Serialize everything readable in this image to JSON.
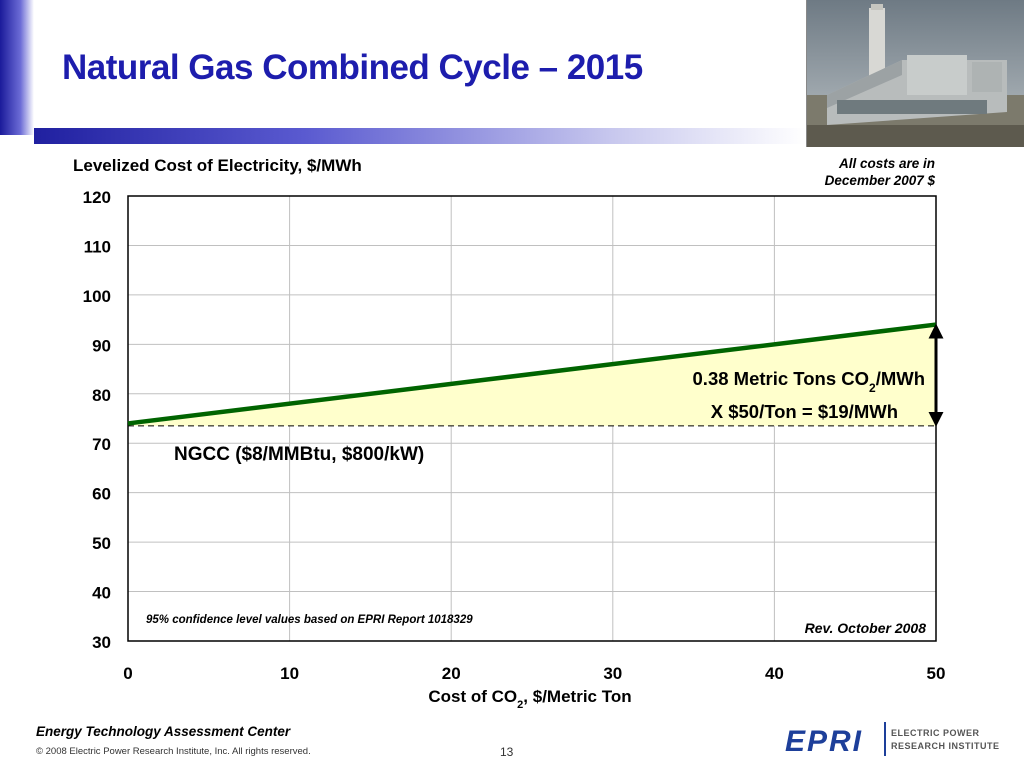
{
  "slide": {
    "title": "Natural Gas Combined Cycle – 2015",
    "cost_note_line1": "All costs are in",
    "cost_note_line2": "December 2007 $",
    "footer_center": "Energy Technology Assessment Center",
    "copyright": "© 2008 Electric Power Research Institute, Inc. All rights reserved.",
    "page_number": "13",
    "logo_text": "EPRI",
    "logo_line1": "ELECTRIC POWER",
    "logo_line2": "RESEARCH INSTITUTE",
    "photo_subject": "power-plant-photo"
  },
  "colors": {
    "title": "#1d1dad",
    "series_line": "#006400",
    "fill": "#ffffcc",
    "grid": "#c0c0c0",
    "logo": "#1d3f9a"
  },
  "chart_data": {
    "type": "line",
    "ylabel": "Levelized Cost of Electricity, $/MWh",
    "xlabel": "Cost of CO",
    "xlabel_sub": "2",
    "xlabel_suffix": ", $/Metric Ton",
    "xlim": [
      0,
      50
    ],
    "ylim": [
      30,
      120
    ],
    "x_ticks": [
      0,
      10,
      20,
      30,
      40,
      50
    ],
    "y_ticks": [
      30,
      40,
      50,
      60,
      70,
      80,
      90,
      100,
      110,
      120
    ],
    "grid": true,
    "series": [
      {
        "name": "NGCC ($8/MMBtu, $800/kW)",
        "x": [
          0,
          50
        ],
        "y": [
          74,
          94
        ]
      }
    ],
    "baseline": 73.5,
    "annotations": {
      "series_label": "NGCC ($8/MMBtu, $800/kW)",
      "line1_prefix": "0.38 Metric Tons CO",
      "line1_sub": "2",
      "line1_suffix": "/MWh",
      "line2": "X $50/Ton = $19/MWh",
      "confidence_note": "95% confidence level values based on EPRI Report 1018329",
      "revision": "Rev. October 2008"
    }
  }
}
